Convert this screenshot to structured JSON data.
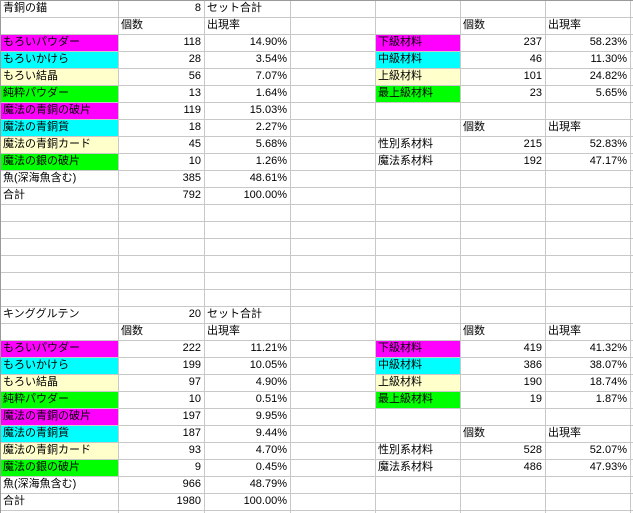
{
  "colors": {
    "magenta": "#ff00ff",
    "cyan": "#00ffff",
    "cream": "#ffffcc",
    "green": "#00ff00",
    "gridline": "#c8c8c8",
    "edge": "#9a9a9a",
    "text": "#000000",
    "background": "#ffffff"
  },
  "sections": [
    {
      "title": "青銅の錨",
      "set_count": "8",
      "set_label": "セット合計",
      "count_header": "個数",
      "rate_header": "出現率",
      "items": [
        {
          "label": "もろいパウダー",
          "fill": "magenta",
          "count": "118",
          "rate": "14.90%"
        },
        {
          "label": "もろいかけら",
          "fill": "cyan",
          "count": "28",
          "rate": "3.54%"
        },
        {
          "label": "もろい結晶",
          "fill": "cream",
          "count": "56",
          "rate": "7.07%"
        },
        {
          "label": "純粋パウダー",
          "fill": "green",
          "count": "13",
          "rate": "1.64%"
        },
        {
          "label": "魔法の青銅の破片",
          "fill": "magenta",
          "count": "119",
          "rate": "15.03%"
        },
        {
          "label": "魔法の青銅貨",
          "fill": "cyan",
          "count": "18",
          "rate": "2.27%"
        },
        {
          "label": "魔法の青銅カード",
          "fill": "cream",
          "count": "45",
          "rate": "5.68%"
        },
        {
          "label": "魔法の銀の破片",
          "fill": "green",
          "count": "10",
          "rate": "1.26%"
        },
        {
          "label": "魚(深海魚含む)",
          "fill": null,
          "count": "385",
          "rate": "48.61%"
        },
        {
          "label": "合計",
          "fill": null,
          "count": "792",
          "rate": "100.00%"
        }
      ],
      "grade_table": {
        "count_header": "個数",
        "rate_header": "出現率",
        "rows": [
          {
            "label": "下級材料",
            "fill": "magenta",
            "count": "237",
            "rate": "58.23%"
          },
          {
            "label": "中級材料",
            "fill": "cyan",
            "count": "46",
            "rate": "11.30%"
          },
          {
            "label": "上級材料",
            "fill": "cream",
            "count": "101",
            "rate": "24.82%"
          },
          {
            "label": "最上級材料",
            "fill": "green",
            "count": "23",
            "rate": "5.65%"
          }
        ]
      },
      "category_table": {
        "count_header": "個数",
        "rate_header": "出現率",
        "rows": [
          {
            "label": "性別系材料",
            "fill": null,
            "count": "215",
            "rate": "52.83%"
          },
          {
            "label": "魔法系材料",
            "fill": null,
            "count": "192",
            "rate": "47.17%"
          }
        ]
      }
    },
    {
      "title": "キンググルテン",
      "set_count": "20",
      "set_label": "セット合計",
      "count_header": "個数",
      "rate_header": "出現率",
      "items": [
        {
          "label": "もろいパウダー",
          "fill": "magenta",
          "count": "222",
          "rate": "11.21%"
        },
        {
          "label": "もろいかけら",
          "fill": "cyan",
          "count": "199",
          "rate": "10.05%"
        },
        {
          "label": "もろい結晶",
          "fill": "cream",
          "count": "97",
          "rate": "4.90%"
        },
        {
          "label": "純粋パウダー",
          "fill": "green",
          "count": "10",
          "rate": "0.51%"
        },
        {
          "label": "魔法の青銅の破片",
          "fill": "magenta",
          "count": "197",
          "rate": "9.95%"
        },
        {
          "label": "魔法の青銅貨",
          "fill": "cyan",
          "count": "187",
          "rate": "9.44%"
        },
        {
          "label": "魔法の青銅カード",
          "fill": "cream",
          "count": "93",
          "rate": "4.70%"
        },
        {
          "label": "魔法の銀の破片",
          "fill": "green",
          "count": "9",
          "rate": "0.45%"
        },
        {
          "label": "魚(深海魚含む)",
          "fill": null,
          "count": "966",
          "rate": "48.79%"
        },
        {
          "label": "合計",
          "fill": null,
          "count": "1980",
          "rate": "100.00%"
        }
      ],
      "grade_table": {
        "count_header": "個数",
        "rate_header": "出現率",
        "rows": [
          {
            "label": "下級材料",
            "fill": "magenta",
            "count": "419",
            "rate": "41.32%"
          },
          {
            "label": "中級材料",
            "fill": "cyan",
            "count": "386",
            "rate": "38.07%"
          },
          {
            "label": "上級材料",
            "fill": "cream",
            "count": "190",
            "rate": "18.74%"
          },
          {
            "label": "最上級材料",
            "fill": "green",
            "count": "19",
            "rate": "1.87%"
          }
        ]
      },
      "category_table": {
        "count_header": "個数",
        "rate_header": "出現率",
        "rows": [
          {
            "label": "性別系材料",
            "fill": null,
            "count": "528",
            "rate": "52.07%"
          },
          {
            "label": "魔法系材料",
            "fill": null,
            "count": "486",
            "rate": "47.93%"
          }
        ]
      }
    }
  ]
}
